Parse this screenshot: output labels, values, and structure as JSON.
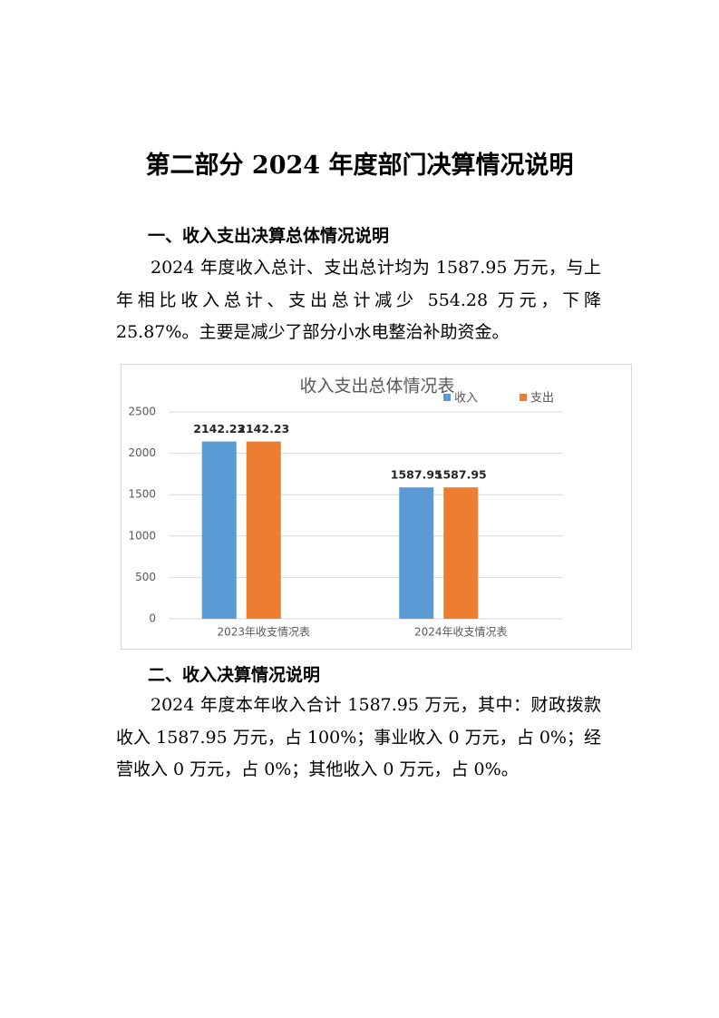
{
  "title": "第二部分  2024 年度部门决算情况说明",
  "sections": [
    {
      "heading": "一、收入支出决算总体情况说明",
      "paragraph": "2024 年度收入总计、支出总计均为 1587.95 万元，与上年相比收入总计、支出总计减少 554.28 万元，下降 25.87%。主要是减少了部分小水电整治补助资金。"
    },
    {
      "heading": "二、收入决算情况说明",
      "paragraph": "2024 年度本年收入合计 1587.95 万元，其中：财政拨款收入 1587.95 万元，占 100%；事业收入 0 万元，占 0%；经营收入 0 万元，占 0%；其他收入 0 万元，占 0%。"
    }
  ],
  "chart_data": {
    "type": "bar",
    "title": "收入支出总体情况表",
    "categories": [
      "2023年收支情况表",
      "2024年收支情况表"
    ],
    "series": [
      {
        "name": "收入",
        "color": "#5b9bd5",
        "values": [
          2142.23,
          1587.95
        ]
      },
      {
        "name": "支出",
        "color": "#ed7d31",
        "values": [
          2142.23,
          1587.95
        ]
      }
    ],
    "ylim": [
      0,
      2500
    ],
    "yticks": [
      0,
      500,
      1000,
      1500,
      2000,
      2500
    ],
    "grid": true
  }
}
